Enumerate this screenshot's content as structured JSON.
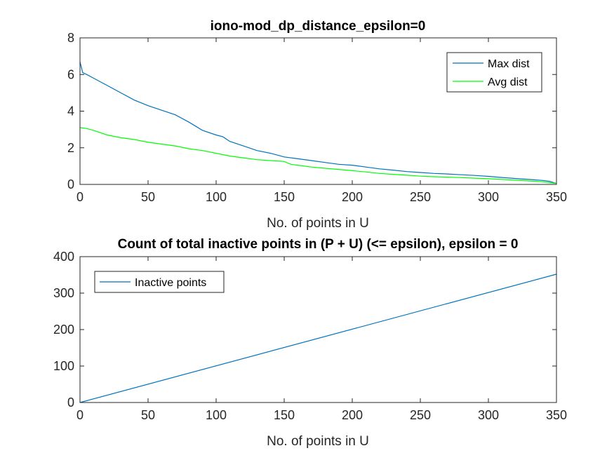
{
  "chart_data": [
    {
      "type": "line",
      "title": "iono-mod_dp_distance_epsilon=0",
      "xlabel": "No. of points in U",
      "ylabel": "",
      "xlim": [
        0,
        350
      ],
      "ylim": [
        0,
        8
      ],
      "xticks": [
        0,
        50,
        100,
        150,
        200,
        250,
        300,
        350
      ],
      "yticks": [
        0,
        2,
        4,
        6,
        8
      ],
      "grid": false,
      "legend_position": "top-right",
      "series": [
        {
          "name": "Max dist",
          "color": "#0072BD",
          "x": [
            0,
            1,
            2,
            5,
            10,
            20,
            30,
            40,
            50,
            60,
            70,
            80,
            90,
            100,
            105,
            110,
            120,
            130,
            140,
            150,
            160,
            170,
            180,
            190,
            200,
            210,
            220,
            230,
            240,
            250,
            260,
            270,
            280,
            290,
            300,
            310,
            320,
            330,
            340,
            345,
            350
          ],
          "y": [
            6.7,
            6.4,
            6.1,
            6.0,
            5.8,
            5.4,
            5.0,
            4.6,
            4.3,
            4.05,
            3.8,
            3.4,
            2.95,
            2.7,
            2.6,
            2.35,
            2.1,
            1.85,
            1.7,
            1.5,
            1.4,
            1.3,
            1.2,
            1.1,
            1.05,
            0.95,
            0.85,
            0.78,
            0.7,
            0.65,
            0.6,
            0.57,
            0.53,
            0.49,
            0.44,
            0.38,
            0.32,
            0.27,
            0.22,
            0.17,
            0.05
          ]
        },
        {
          "name": "Avg dist",
          "color": "#00FF00",
          "x": [
            0,
            5,
            10,
            20,
            30,
            40,
            50,
            60,
            70,
            80,
            90,
            100,
            110,
            120,
            130,
            140,
            150,
            155,
            160,
            170,
            180,
            190,
            200,
            210,
            220,
            230,
            240,
            250,
            260,
            270,
            280,
            290,
            300,
            310,
            320,
            330,
            340,
            345,
            350
          ],
          "y": [
            3.1,
            3.05,
            2.95,
            2.7,
            2.55,
            2.45,
            2.3,
            2.2,
            2.1,
            1.95,
            1.85,
            1.7,
            1.55,
            1.45,
            1.35,
            1.3,
            1.25,
            1.1,
            1.05,
            0.95,
            0.88,
            0.82,
            0.75,
            0.68,
            0.6,
            0.55,
            0.5,
            0.45,
            0.42,
            0.4,
            0.37,
            0.34,
            0.31,
            0.27,
            0.23,
            0.19,
            0.14,
            0.1,
            0.05
          ]
        }
      ]
    },
    {
      "type": "line",
      "title": "Count of total inactive points in (P + U) (<= epsilon), epsilon = 0",
      "xlabel": "No. of points in U",
      "ylabel": "",
      "xlim": [
        0,
        350
      ],
      "ylim": [
        0,
        400
      ],
      "xticks": [
        0,
        50,
        100,
        150,
        200,
        250,
        300,
        350
      ],
      "yticks": [
        0,
        100,
        200,
        300,
        400
      ],
      "grid": false,
      "legend_position": "top-left",
      "series": [
        {
          "name": "Inactive points",
          "color": "#0072BD",
          "x": [
            0,
            350
          ],
          "y": [
            0,
            352
          ]
        }
      ]
    }
  ]
}
